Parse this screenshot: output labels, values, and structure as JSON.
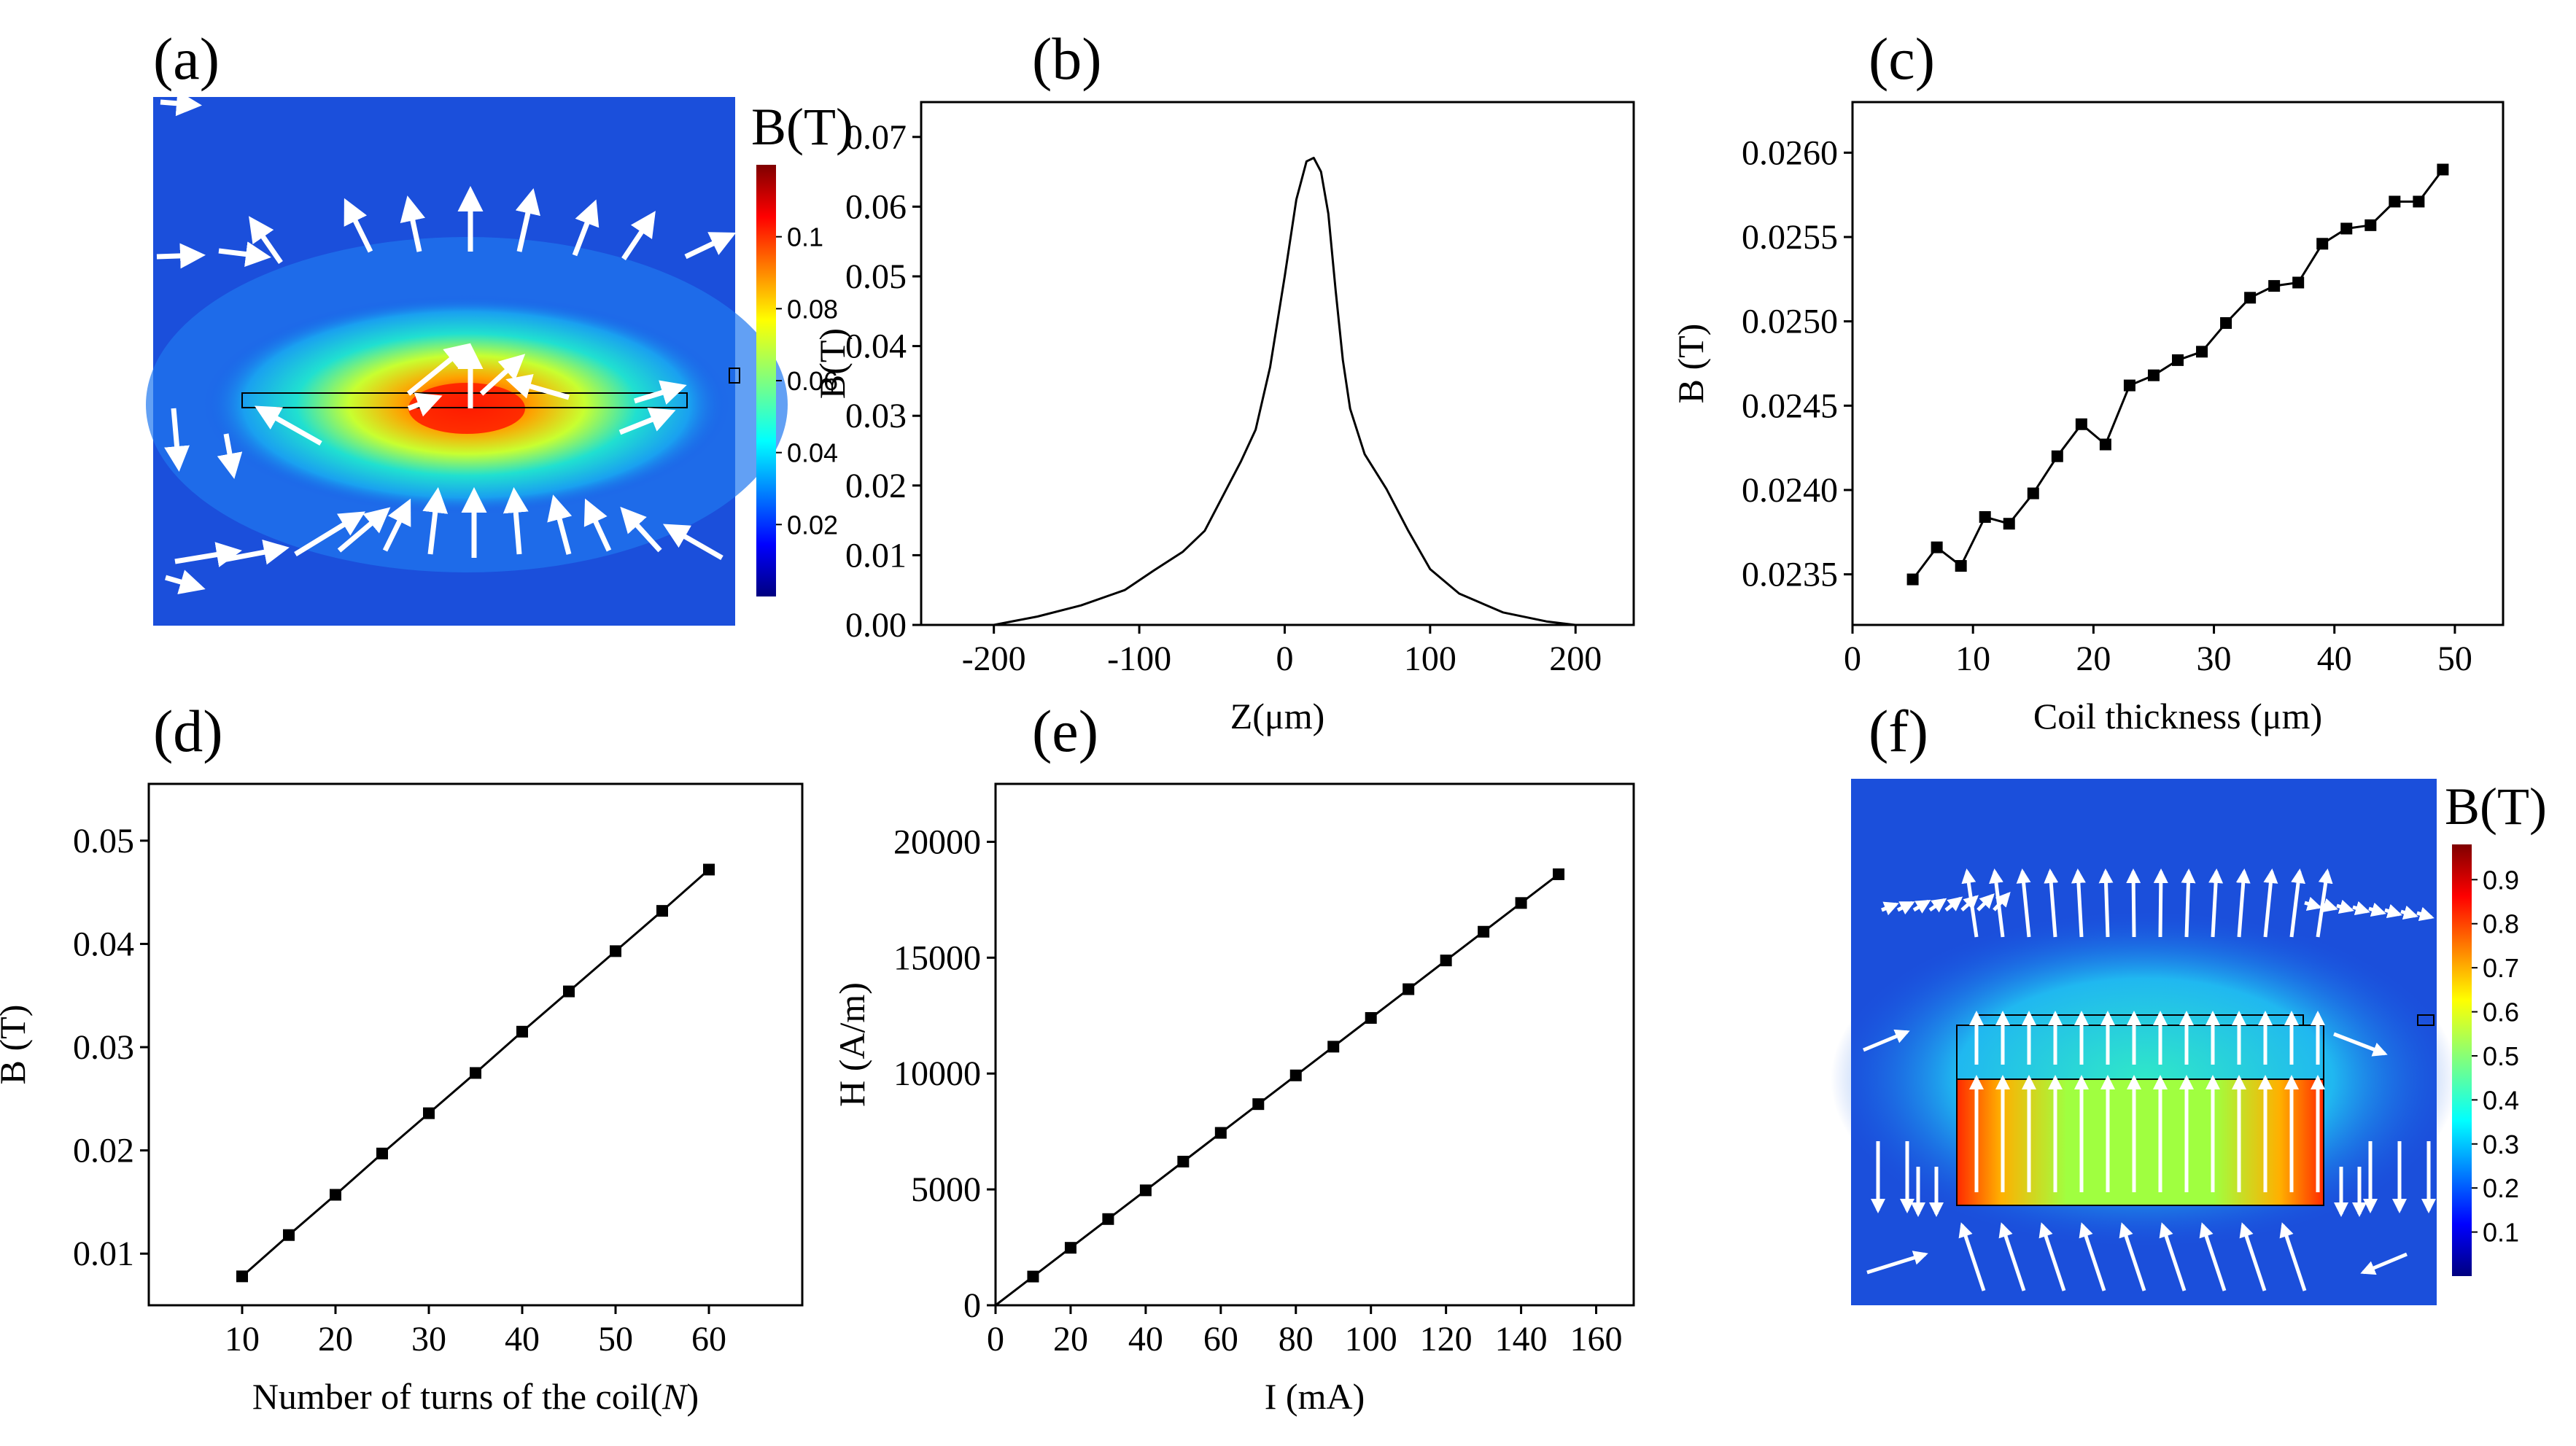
{
  "panels": {
    "a": {
      "label": "(a)",
      "type": "field_map",
      "colorbar": {
        "title": "B(T)",
        "ticks": [
          "0.02",
          "0.04",
          "0.06",
          "0.08",
          "0.1"
        ],
        "tick_values": [
          0.02,
          0.04,
          0.06,
          0.08,
          0.1
        ],
        "min": 0.0,
        "max": 0.12
      }
    },
    "f": {
      "label": "(f)",
      "type": "field_map",
      "colorbar": {
        "title": "B(T)",
        "ticks": [
          "0.1",
          "0.2",
          "0.3",
          "0.4",
          "0.5",
          "0.6",
          "0.7",
          "0.8",
          "0.9"
        ],
        "tick_values": [
          0.1,
          0.2,
          0.3,
          0.4,
          0.5,
          0.6,
          0.7,
          0.8,
          0.9
        ],
        "min": 0.0,
        "max": 0.98
      }
    }
  },
  "colors": {
    "line": "#000000",
    "jet_low": "#00007f",
    "jet_high": "#7f0000",
    "arrow": "#ffffff"
  },
  "chart_data": [
    {
      "id": "b",
      "label": "(b)",
      "type": "line",
      "xlabel": "Z(μm)",
      "ylabel": "B(T)",
      "xlim": [
        -250,
        240
      ],
      "ylim": [
        0,
        0.075
      ],
      "xticks": [
        -200,
        -100,
        0,
        100,
        200
      ],
      "yticks": [
        0,
        0.01,
        0.02,
        0.03,
        0.04,
        0.05,
        0.06,
        0.07
      ],
      "xtick_labels": [
        "-200",
        "-100",
        "0",
        "100",
        "200"
      ],
      "ytick_labels": [
        "0.00",
        "0.01",
        "0.02",
        "0.03",
        "0.04",
        "0.05",
        "0.06",
        "0.07"
      ],
      "markers": false,
      "x": [
        -200,
        -170,
        -140,
        -110,
        -90,
        -70,
        -55,
        -40,
        -30,
        -20,
        -10,
        0,
        8,
        15,
        20,
        25,
        30,
        35,
        40,
        45,
        55,
        70,
        85,
        100,
        120,
        150,
        180,
        200
      ],
      "y": [
        0.0,
        0.0012,
        0.0028,
        0.005,
        0.0078,
        0.0105,
        0.0135,
        0.0195,
        0.0235,
        0.028,
        0.037,
        0.05,
        0.061,
        0.0665,
        0.067,
        0.065,
        0.059,
        0.048,
        0.038,
        0.031,
        0.0245,
        0.0195,
        0.0135,
        0.008,
        0.0045,
        0.0018,
        0.0005,
        0.0
      ]
    },
    {
      "id": "c",
      "label": "(c)",
      "type": "line",
      "xlabel": "Coil thickness (μm)",
      "ylabel": "B (T)",
      "xlim": [
        0,
        54
      ],
      "ylim": [
        0.0232,
        0.0263
      ],
      "xticks": [
        0,
        10,
        20,
        30,
        40,
        50
      ],
      "yticks": [
        0.0235,
        0.024,
        0.0245,
        0.025,
        0.0255,
        0.026
      ],
      "xtick_labels": [
        "0",
        "10",
        "20",
        "30",
        "40",
        "50"
      ],
      "ytick_labels": [
        "0.0235",
        "0.0240",
        "0.0245",
        "0.0250",
        "0.0255",
        "0.0260"
      ],
      "markers": true,
      "x": [
        5,
        7,
        9,
        11,
        13,
        15,
        17,
        19,
        21,
        23,
        25,
        27,
        29,
        31,
        33,
        35,
        37,
        39,
        41,
        43,
        45,
        47,
        49
      ],
      "y": [
        0.02347,
        0.02366,
        0.02355,
        0.02384,
        0.0238,
        0.02398,
        0.0242,
        0.02439,
        0.02427,
        0.02462,
        0.02468,
        0.02477,
        0.02482,
        0.02499,
        0.02514,
        0.02521,
        0.02523,
        0.02546,
        0.02555,
        0.02557,
        0.02571,
        0.02571,
        0.0259
      ]
    },
    {
      "id": "d",
      "label": "(d)",
      "type": "line",
      "xlabel": "Number of turns of the coil(",
      "xlabel_italic": "N",
      "xlabel_suffix": ")",
      "ylabel": "B (T)",
      "xlim": [
        0,
        70
      ],
      "ylim": [
        0.005,
        0.0555
      ],
      "xticks": [
        10,
        20,
        30,
        40,
        50,
        60
      ],
      "yticks": [
        0.01,
        0.02,
        0.03,
        0.04,
        0.05
      ],
      "xtick_labels": [
        "10",
        "20",
        "30",
        "40",
        "50",
        "60"
      ],
      "ytick_labels": [
        "0.01",
        "0.02",
        "0.03",
        "0.04",
        "0.05"
      ],
      "markers": true,
      "x": [
        10,
        15,
        20,
        25,
        30,
        35,
        40,
        45,
        50,
        55,
        60
      ],
      "y": [
        0.0078,
        0.0118,
        0.0157,
        0.0197,
        0.0236,
        0.0275,
        0.0315,
        0.0354,
        0.0393,
        0.0432,
        0.0472
      ]
    },
    {
      "id": "e",
      "label": "(e)",
      "type": "line",
      "xlabel": "I (mA)",
      "ylabel": "H (A/m)",
      "xlim": [
        0,
        170
      ],
      "ylim": [
        0,
        22500
      ],
      "xticks": [
        0,
        20,
        40,
        60,
        80,
        100,
        120,
        140,
        160
      ],
      "yticks": [
        0,
        5000,
        10000,
        15000,
        20000
      ],
      "xtick_labels": [
        "0",
        "20",
        "40",
        "60",
        "80",
        "100",
        "120",
        "140",
        "160"
      ],
      "ytick_labels": [
        "0",
        "5000",
        "10000",
        "15000",
        "20000"
      ],
      "markers": true,
      "line_start": [
        0,
        0
      ],
      "x": [
        10,
        20,
        30,
        40,
        50,
        60,
        70,
        80,
        90,
        100,
        110,
        120,
        130,
        140,
        150
      ],
      "y": [
        1240,
        2480,
        3720,
        4960,
        6200,
        7440,
        8680,
        9920,
        11160,
        12400,
        13640,
        14880,
        16120,
        17360,
        18600
      ]
    }
  ]
}
